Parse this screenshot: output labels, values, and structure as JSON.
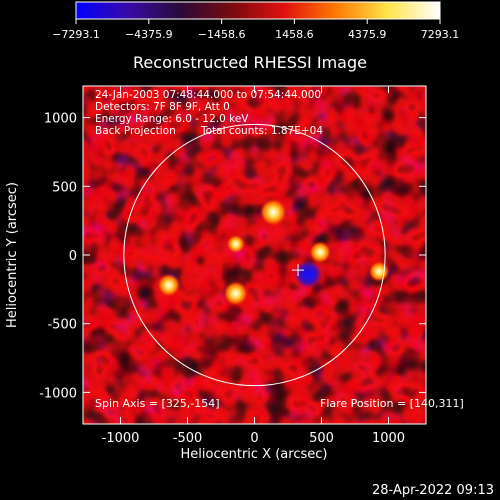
{
  "chart_data": {
    "type": "heatmap",
    "title": "Reconstructed RHESSI Image",
    "xlabel": "Heliocentric X (arcsec)",
    "ylabel": "Heliocentric Y (arcsec)",
    "xlim": [
      -1280,
      1280
    ],
    "ylim": [
      -1230,
      1230
    ],
    "x_ticks": [
      -1000,
      -500,
      0,
      500,
      1000
    ],
    "x_tick_labels": [
      "-1000",
      "-500",
      "0",
      "500",
      "1000"
    ],
    "y_ticks": [
      1000,
      500,
      0,
      -500,
      -1000
    ],
    "y_tick_labels": [
      "1000",
      "500",
      "0",
      "-500",
      "-1000"
    ],
    "colorbar": {
      "min": -7293.1,
      "max": 7293.1,
      "ticks": [
        -7293.1,
        -4375.9,
        -1458.6,
        1458.6,
        4375.9,
        7293.1
      ],
      "tick_labels": [
        "−7293.1",
        "−4375.9",
        "−1458.6",
        "1458.6",
        "4375.9",
        "7293.1"
      ],
      "colormap": [
        "#0000ff",
        "#3a0aa8",
        "#2a0a3a",
        "#7a0a10",
        "#e01010",
        "#ff7a00",
        "#ffe44a",
        "#ffffff"
      ]
    },
    "annotations": [
      "24-Jan-2003 07:48:44.000 to 07:54:44.000",
      "Detectors: 7F 8F 9F, Att 0",
      "Energy Range: 6.0 - 12.0 keV",
      "Back Projection",
      "Total counts: 1.87E+04"
    ],
    "footer_left": "Spin Axis = [325,-154]",
    "footer_right": "Flare Position = [140,311]",
    "solar_disk_radius": 975,
    "solar_disk_center": [
      0,
      0
    ],
    "flare_marker": [
      325,
      -110
    ],
    "hot_spots": [
      {
        "x": 140,
        "y": 311,
        "value": 7293.1
      },
      {
        "x": -640,
        "y": -220,
        "value": 5200
      },
      {
        "x": -140,
        "y": -280,
        "value": 6000
      },
      {
        "x": 490,
        "y": 20,
        "value": 4700
      },
      {
        "x": 930,
        "y": -120,
        "value": 4100
      },
      {
        "x": -140,
        "y": 80,
        "value": 3100
      },
      {
        "x": 400,
        "y": -140,
        "value": -7293.1
      }
    ],
    "grid": false
  },
  "timestamp": "28-Apr-2022 09:13"
}
